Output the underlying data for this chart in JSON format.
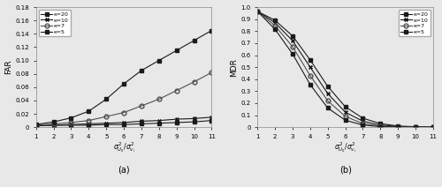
{
  "x": [
    1,
    2,
    3,
    4,
    5,
    6,
    7,
    8,
    9,
    10,
    11
  ],
  "far": {
    "k20": [
      0.002,
      0.003,
      0.003,
      0.003,
      0.004,
      0.004,
      0.005,
      0.006,
      0.007,
      0.008,
      0.01
    ],
    "k10": [
      0.002,
      0.003,
      0.004,
      0.005,
      0.006,
      0.007,
      0.009,
      0.01,
      0.012,
      0.013,
      0.015
    ],
    "k7": [
      0.003,
      0.005,
      0.007,
      0.01,
      0.016,
      0.022,
      0.032,
      0.042,
      0.055,
      0.068,
      0.082
    ],
    "k5": [
      0.004,
      0.008,
      0.014,
      0.024,
      0.042,
      0.065,
      0.085,
      0.1,
      0.115,
      0.13,
      0.145
    ]
  },
  "mdr": {
    "k20": [
      0.965,
      0.89,
      0.76,
      0.56,
      0.34,
      0.17,
      0.075,
      0.03,
      0.01,
      0.004,
      0.001
    ],
    "k10": [
      0.965,
      0.87,
      0.72,
      0.5,
      0.28,
      0.125,
      0.05,
      0.018,
      0.006,
      0.002,
      0.001
    ],
    "k7": [
      0.965,
      0.845,
      0.67,
      0.43,
      0.22,
      0.09,
      0.03,
      0.01,
      0.003,
      0.001,
      0.0
    ],
    "k5": [
      0.965,
      0.815,
      0.61,
      0.355,
      0.16,
      0.058,
      0.018,
      0.005,
      0.001,
      0.0,
      0.0
    ]
  },
  "far_ylim": [
    0,
    0.18
  ],
  "mdr_ylim": [
    0,
    1.0
  ],
  "xlim": [
    1,
    11
  ],
  "far_ylabel": "FAR",
  "mdr_ylabel": "MDR",
  "labels": [
    "κ=20",
    "κ=10",
    "κ=7",
    "κ=5"
  ],
  "colors": [
    "#2a2a2a",
    "#2a2a2a",
    "#2a2a2a",
    "#2a2a2a"
  ],
  "markers": [
    "s",
    "x",
    "o",
    "s"
  ],
  "markersize": 3.0,
  "linewidth": 0.8,
  "subtitle_a": "(a)",
  "subtitle_b": "(b)",
  "bg_color": "#e8e8e8",
  "far_yticks": [
    0,
    0.02,
    0.04,
    0.06,
    0.08,
    0.1,
    0.12,
    0.14,
    0.16,
    0.18
  ],
  "mdr_yticks": [
    0,
    0.1,
    0.2,
    0.3,
    0.4,
    0.5,
    0.6,
    0.7,
    0.8,
    0.9,
    1.0
  ],
  "xticks": [
    1,
    2,
    3,
    4,
    5,
    6,
    7,
    8,
    9,
    10,
    11
  ]
}
